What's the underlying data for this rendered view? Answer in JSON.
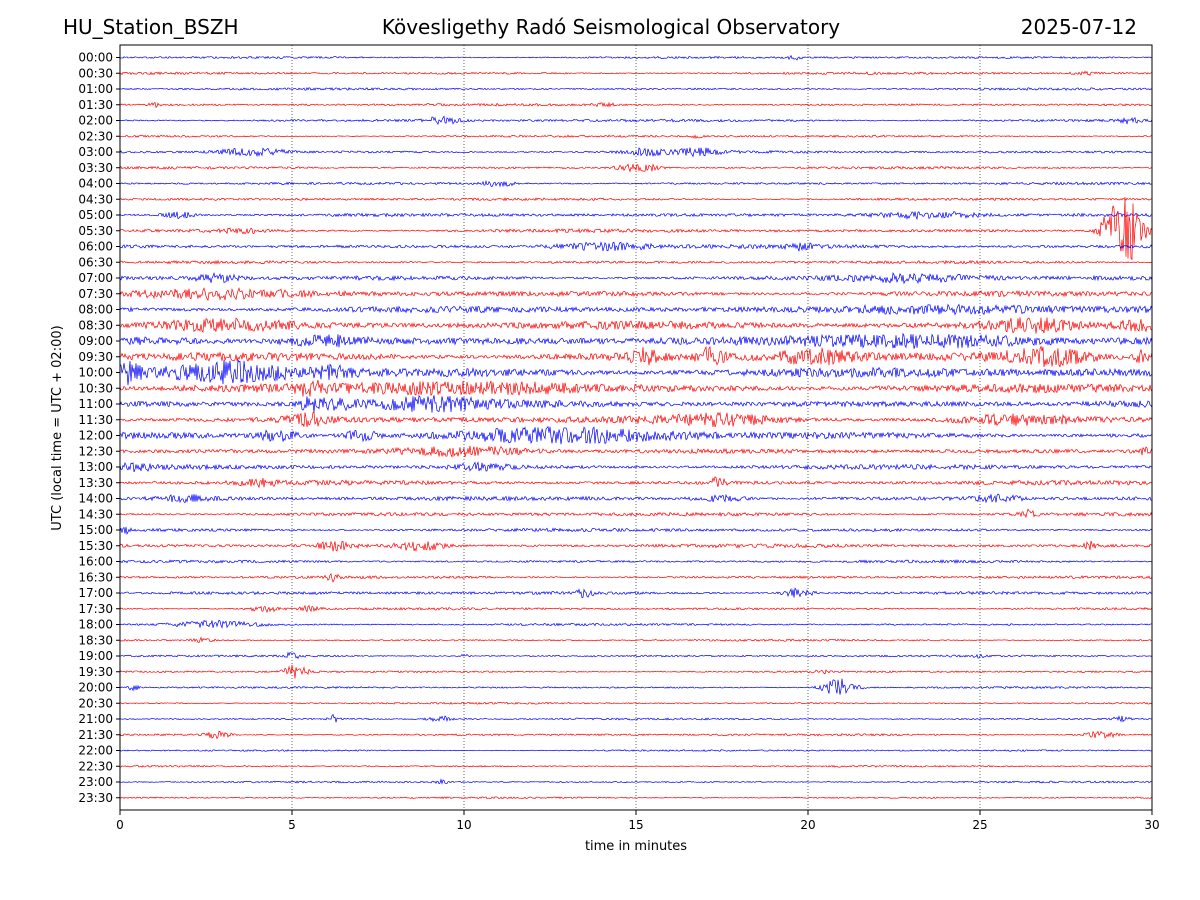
{
  "header": {
    "station": "HU_Station_BSZH",
    "observatory": "Kövesligethy Radó Seismological Observatory",
    "date": "2025-07-12"
  },
  "chart_data": {
    "type": "line",
    "title": "Kövesligethy Radó Seismological Observatory",
    "xlabel": "time in minutes",
    "ylabel": "UTC (local time = UTC + 02:00)",
    "xlim": [
      0,
      30
    ],
    "x_ticks": [
      0,
      5,
      10,
      15,
      20,
      25,
      30
    ],
    "grid": "vertical dotted at x ticks",
    "colors": {
      "even_rows": "#0000ff",
      "odd_rows": "#ff0000"
    },
    "rows": [
      {
        "label": "00:00",
        "noise": 0.9,
        "events": [
          {
            "t": 19.6,
            "amp": 3,
            "dur": 0.2
          }
        ]
      },
      {
        "label": "00:30",
        "noise": 1.0,
        "events": [
          {
            "t": 28.0,
            "amp": 2,
            "dur": 0.4
          }
        ]
      },
      {
        "label": "01:00",
        "noise": 0.9,
        "events": []
      },
      {
        "label": "01:30",
        "noise": 1.0,
        "events": [
          {
            "t": 1.0,
            "amp": 2.5,
            "dur": 0.2
          },
          {
            "t": 14.1,
            "amp": 2,
            "dur": 0.3
          }
        ]
      },
      {
        "label": "02:00",
        "noise": 1.1,
        "events": [
          {
            "t": 9.4,
            "amp": 4,
            "dur": 0.6
          },
          {
            "t": 29.4,
            "amp": 3,
            "dur": 0.4
          }
        ]
      },
      {
        "label": "02:30",
        "noise": 0.9,
        "events": [
          {
            "t": 16.8,
            "amp": 2,
            "dur": 0.2
          }
        ]
      },
      {
        "label": "03:00",
        "noise": 1.1,
        "events": [
          {
            "t": 3.8,
            "amp": 4,
            "dur": 1.2
          },
          {
            "t": 15.3,
            "amp": 3.5,
            "dur": 0.8
          },
          {
            "t": 16.8,
            "amp": 3.5,
            "dur": 0.8
          }
        ]
      },
      {
        "label": "03:30",
        "noise": 1.0,
        "events": [
          {
            "t": 14.8,
            "amp": 3,
            "dur": 0.5
          },
          {
            "t": 15.4,
            "amp": 3,
            "dur": 0.4
          }
        ]
      },
      {
        "label": "04:00",
        "noise": 1.0,
        "events": [
          {
            "t": 11.0,
            "amp": 3,
            "dur": 0.6
          }
        ]
      },
      {
        "label": "04:30",
        "noise": 1.1,
        "events": []
      },
      {
        "label": "05:00",
        "noise": 1.4,
        "events": [
          {
            "t": 1.7,
            "amp": 3,
            "dur": 0.6
          },
          {
            "t": 23.5,
            "amp": 3.5,
            "dur": 2.0
          }
        ]
      },
      {
        "label": "05:30",
        "noise": 1.4,
        "events": [
          {
            "t": 3.5,
            "amp": 2,
            "dur": 1.0
          },
          {
            "t": 28.7,
            "amp": 8,
            "dur": 0.3
          },
          {
            "t": 29.2,
            "amp": 38,
            "dur": 0.6
          }
        ]
      },
      {
        "label": "06:00",
        "noise": 1.6,
        "events": [
          {
            "t": 14.0,
            "amp": 3.5,
            "dur": 1.8
          },
          {
            "t": 19.8,
            "amp": 3,
            "dur": 0.4
          }
        ]
      },
      {
        "label": "06:30",
        "noise": 1.2,
        "events": []
      },
      {
        "label": "07:00",
        "noise": 1.8,
        "events": [
          {
            "t": 2.8,
            "amp": 3.5,
            "dur": 0.8
          },
          {
            "t": 23.0,
            "amp": 3.5,
            "dur": 2.5
          }
        ]
      },
      {
        "label": "07:30",
        "noise": 2.3,
        "events": [
          {
            "t": 2.5,
            "amp": 4,
            "dur": 3.0
          }
        ]
      },
      {
        "label": "08:00",
        "noise": 2.5,
        "events": [
          {
            "t": 24.0,
            "amp": 4,
            "dur": 4.0
          }
        ]
      },
      {
        "label": "08:30",
        "noise": 3.2,
        "events": [
          {
            "t": 3.0,
            "amp": 4.5,
            "dur": 2.5
          },
          {
            "t": 26.5,
            "amp": 6,
            "dur": 1.5
          },
          {
            "t": 29.5,
            "amp": 5,
            "dur": 0.8
          }
        ]
      },
      {
        "label": "09:00",
        "noise": 3.6,
        "events": [
          {
            "t": 6.0,
            "amp": 5,
            "dur": 1.5
          },
          {
            "t": 24.0,
            "amp": 5,
            "dur": 4.0
          }
        ]
      },
      {
        "label": "09:30",
        "noise": 3.6,
        "events": [
          {
            "t": 15.2,
            "amp": 7,
            "dur": 0.5
          },
          {
            "t": 17.2,
            "amp": 7,
            "dur": 0.5
          },
          {
            "t": 20.2,
            "amp": 6,
            "dur": 1.5
          },
          {
            "t": 27.0,
            "amp": 7,
            "dur": 1.5
          },
          {
            "t": 29.8,
            "amp": 7,
            "dur": 0.4
          }
        ]
      },
      {
        "label": "10:00",
        "noise": 4.0,
        "events": [
          {
            "t": 0.2,
            "amp": 8,
            "dur": 0.5
          },
          {
            "t": 3.3,
            "amp": 9,
            "dur": 2.0
          },
          {
            "t": 6.3,
            "amp": 5,
            "dur": 0.8
          }
        ]
      },
      {
        "label": "10:30",
        "noise": 3.4,
        "events": [
          {
            "t": 10.5,
            "amp": 5,
            "dur": 4.0
          },
          {
            "t": 5.5,
            "amp": 5,
            "dur": 0.5
          }
        ]
      },
      {
        "label": "11:00",
        "noise": 3.0,
        "events": [
          {
            "t": 6.2,
            "amp": 6,
            "dur": 0.8
          },
          {
            "t": 9.0,
            "amp": 5,
            "dur": 2.0
          },
          {
            "t": 5.5,
            "amp": 6,
            "dur": 0.3
          }
        ]
      },
      {
        "label": "11:30",
        "noise": 2.8,
        "events": [
          {
            "t": 5.5,
            "amp": 5,
            "dur": 0.8
          },
          {
            "t": 17.5,
            "amp": 4,
            "dur": 2.0
          },
          {
            "t": 26.0,
            "amp": 4,
            "dur": 2.0
          }
        ]
      },
      {
        "label": "12:00",
        "noise": 2.8,
        "events": [
          {
            "t": 4.6,
            "amp": 5,
            "dur": 0.8
          },
          {
            "t": 7.0,
            "amp": 5,
            "dur": 0.6
          },
          {
            "t": 13.0,
            "amp": 6,
            "dur": 4.0
          }
        ]
      },
      {
        "label": "12:30",
        "noise": 1.8,
        "events": [
          {
            "t": 10.0,
            "amp": 5,
            "dur": 2.5
          },
          {
            "t": 29.8,
            "amp": 3,
            "dur": 0.4
          }
        ]
      },
      {
        "label": "13:00",
        "noise": 1.9,
        "events": [
          {
            "t": 0.5,
            "amp": 3,
            "dur": 0.6
          },
          {
            "t": 10.5,
            "amp": 3,
            "dur": 1.0
          }
        ]
      },
      {
        "label": "13:30",
        "noise": 1.8,
        "events": [
          {
            "t": 17.4,
            "amp": 6,
            "dur": 0.3
          },
          {
            "t": 4.0,
            "amp": 3,
            "dur": 0.8
          }
        ]
      },
      {
        "label": "14:00",
        "noise": 1.7,
        "events": [
          {
            "t": 2.0,
            "amp": 3,
            "dur": 1.0
          },
          {
            "t": 17.5,
            "amp": 3,
            "dur": 1.0
          },
          {
            "t": 25.5,
            "amp": 3,
            "dur": 0.8
          }
        ]
      },
      {
        "label": "14:30",
        "noise": 1.5,
        "events": [
          {
            "t": 26.4,
            "amp": 4,
            "dur": 0.3
          }
        ]
      },
      {
        "label": "15:00",
        "noise": 1.4,
        "events": [
          {
            "t": 0.1,
            "amp": 3,
            "dur": 0.3
          }
        ]
      },
      {
        "label": "15:30",
        "noise": 1.5,
        "events": [
          {
            "t": 6.3,
            "amp": 5,
            "dur": 0.6
          },
          {
            "t": 8.7,
            "amp": 5,
            "dur": 0.8
          },
          {
            "t": 28.2,
            "amp": 4,
            "dur": 0.2
          }
        ]
      },
      {
        "label": "16:00",
        "noise": 1.1,
        "events": []
      },
      {
        "label": "16:30",
        "noise": 1.1,
        "events": [
          {
            "t": 6.2,
            "amp": 5,
            "dur": 0.2
          }
        ]
      },
      {
        "label": "17:00",
        "noise": 1.3,
        "events": [
          {
            "t": 13.5,
            "amp": 4,
            "dur": 0.3
          },
          {
            "t": 19.7,
            "amp": 5,
            "dur": 0.5
          }
        ]
      },
      {
        "label": "17:30",
        "noise": 1.0,
        "events": [
          {
            "t": 4.2,
            "amp": 3,
            "dur": 0.6
          },
          {
            "t": 5.5,
            "amp": 2.5,
            "dur": 0.4
          }
        ]
      },
      {
        "label": "18:00",
        "noise": 0.9,
        "events": [
          {
            "t": 2.8,
            "amp": 3.5,
            "dur": 1.5
          }
        ]
      },
      {
        "label": "18:30",
        "noise": 0.8,
        "events": [
          {
            "t": 2.4,
            "amp": 2.5,
            "dur": 0.4
          }
        ]
      },
      {
        "label": "19:00",
        "noise": 0.8,
        "events": [
          {
            "t": 5.0,
            "amp": 3,
            "dur": 0.3
          },
          {
            "t": 10.0,
            "amp": 2,
            "dur": 0.2
          },
          {
            "t": 25.0,
            "amp": 2,
            "dur": 0.2
          }
        ]
      },
      {
        "label": "19:30",
        "noise": 0.8,
        "events": [
          {
            "t": 5.1,
            "amp": 7,
            "dur": 0.4
          },
          {
            "t": 20.4,
            "amp": 3,
            "dur": 0.2
          }
        ]
      },
      {
        "label": "20:00",
        "noise": 0.8,
        "events": [
          {
            "t": 0.4,
            "amp": 3,
            "dur": 0.2
          },
          {
            "t": 20.9,
            "amp": 9,
            "dur": 0.6
          }
        ]
      },
      {
        "label": "20:30",
        "noise": 0.7,
        "events": []
      },
      {
        "label": "21:00",
        "noise": 0.8,
        "events": [
          {
            "t": 6.2,
            "amp": 4,
            "dur": 0.2
          },
          {
            "t": 9.3,
            "amp": 3,
            "dur": 0.4
          },
          {
            "t": 29.1,
            "amp": 3,
            "dur": 0.3
          }
        ]
      },
      {
        "label": "21:30",
        "noise": 0.9,
        "events": [
          {
            "t": 2.8,
            "amp": 3.5,
            "dur": 0.5
          },
          {
            "t": 28.5,
            "amp": 3.5,
            "dur": 0.6
          }
        ]
      },
      {
        "label": "22:00",
        "noise": 0.7,
        "events": []
      },
      {
        "label": "22:30",
        "noise": 0.7,
        "events": []
      },
      {
        "label": "23:00",
        "noise": 0.7,
        "events": [
          {
            "t": 9.3,
            "amp": 2,
            "dur": 0.3
          }
        ]
      },
      {
        "label": "23:30",
        "noise": 0.7,
        "events": []
      }
    ]
  }
}
